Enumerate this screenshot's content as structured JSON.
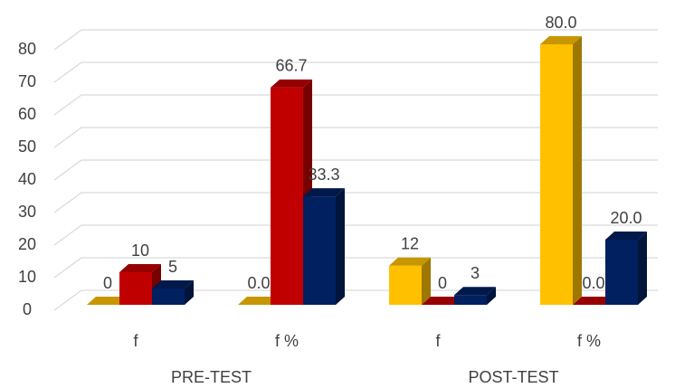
{
  "chart_data": {
    "type": "bar3d",
    "categories": [
      "f",
      "f %",
      "f",
      "f %"
    ],
    "groups": [
      "PRE-TEST",
      "POST-TEST"
    ],
    "series": [
      {
        "color": "#ffc000",
        "values": [
          0,
          0.0,
          12,
          80.0
        ],
        "value_labels": [
          "0",
          "0.0",
          "12",
          "80.0"
        ]
      },
      {
        "color": "#c00000",
        "values": [
          10,
          66.7,
          0,
          0.0
        ],
        "value_labels": [
          "10",
          "66.7",
          "0",
          "0.0"
        ]
      },
      {
        "color": "#002060",
        "values": [
          5,
          33.3,
          3,
          20.0
        ],
        "value_labels": [
          "5",
          "33.3",
          "3",
          "20.0"
        ]
      }
    ],
    "ylim": [
      0,
      80
    ],
    "yticks": [
      0,
      10,
      20,
      30,
      40,
      50,
      60,
      70,
      80
    ],
    "grid": true
  }
}
